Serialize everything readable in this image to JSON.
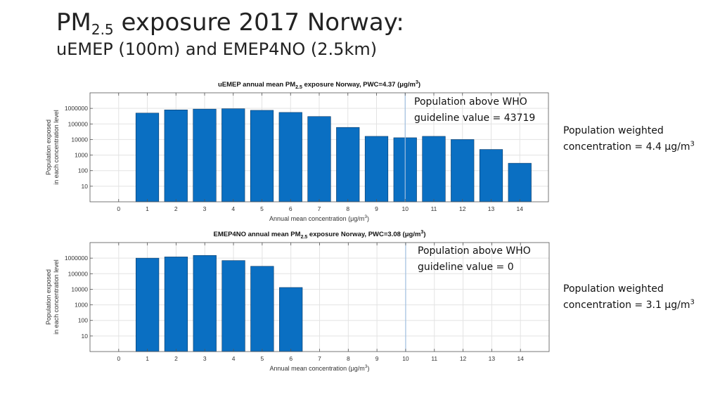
{
  "slide": {
    "title_prefix": "PM",
    "title_sub": "2.5",
    "title_rest": " exposure 2017 Norway:",
    "subtitle": "uEMEP (100m) and EMEP4NO (2.5km)"
  },
  "colors": {
    "bar": "#0a6fc2",
    "bar_edge": "#0b3a66",
    "who_line": "#9fbfe0",
    "grid": "#e3e3e3"
  },
  "chart_data": [
    {
      "type": "bar",
      "title_pre": "uEMEP annual mean PM",
      "title_sub": "2.5",
      "title_post": " exposure Norway, PWC=4.37 (μg/m",
      "title_sup": "3",
      "title_end": ")",
      "xlabel_pre": "Annual mean concentration (μg/m",
      "xlabel_sup": "3",
      "xlabel_end": ")",
      "ylabel_1": "Population exposed",
      "ylabel_2": "in each concentration level",
      "yscale": "log",
      "ylim": [
        1,
        10000000
      ],
      "xlim": [
        -1,
        15
      ],
      "x_ticks": [
        0,
        1,
        2,
        3,
        4,
        5,
        6,
        7,
        8,
        9,
        10,
        11,
        12,
        13,
        14
      ],
      "y_ticks": [
        10,
        100,
        1000,
        10000,
        100000,
        1000000
      ],
      "y_tick_labels": [
        "10",
        "100",
        "1000",
        "10000",
        "100000",
        "1000000"
      ],
      "categories": [
        1,
        2,
        3,
        4,
        5,
        6,
        7,
        8,
        9,
        10,
        11,
        12,
        13,
        14
      ],
      "values": [
        500000,
        800000,
        900000,
        950000,
        750000,
        550000,
        300000,
        60000,
        16000,
        13000,
        16000,
        10000,
        2300,
        300
      ],
      "who_guideline_x": 10,
      "grid": true,
      "annotation_line1": "Population above WHO",
      "annotation_line2": "guideline value = 43719",
      "pwc_line1": "Population weighted",
      "pwc_line2": "concentration =  4.4 µg/m",
      "pwc_sup": "3"
    },
    {
      "type": "bar",
      "title_pre": "EMEP4NO annual mean PM",
      "title_sub": "2.5",
      "title_post": " exposure Norway, PWC=3.08 (μg/m",
      "title_sup": "3",
      "title_end": ")",
      "xlabel_pre": "Annual mean concentration (μg/m",
      "xlabel_sup": "3",
      "xlabel_end": ")",
      "ylabel_1": "Population exposed",
      "ylabel_2": "in each concentration level",
      "yscale": "log",
      "ylim": [
        1,
        10000000
      ],
      "xlim": [
        -1,
        15
      ],
      "x_ticks": [
        0,
        1,
        2,
        3,
        4,
        5,
        6,
        7,
        8,
        9,
        10,
        11,
        12,
        13,
        14
      ],
      "y_ticks": [
        10,
        100,
        1000,
        10000,
        100000,
        1000000
      ],
      "y_tick_labels": [
        "10",
        "100",
        "1000",
        "10000",
        "100000",
        "1000000"
      ],
      "categories": [
        1,
        2,
        3,
        4,
        5,
        6
      ],
      "values": [
        1000000,
        1200000,
        1500000,
        700000,
        300000,
        13000
      ],
      "who_guideline_x": 10,
      "grid": true,
      "annotation_line1": "Population above WHO",
      "annotation_line2": "guideline value = 0",
      "pwc_line1": "Population weighted",
      "pwc_line2": "concentration =  3.1 µg/m",
      "pwc_sup": "3"
    }
  ]
}
